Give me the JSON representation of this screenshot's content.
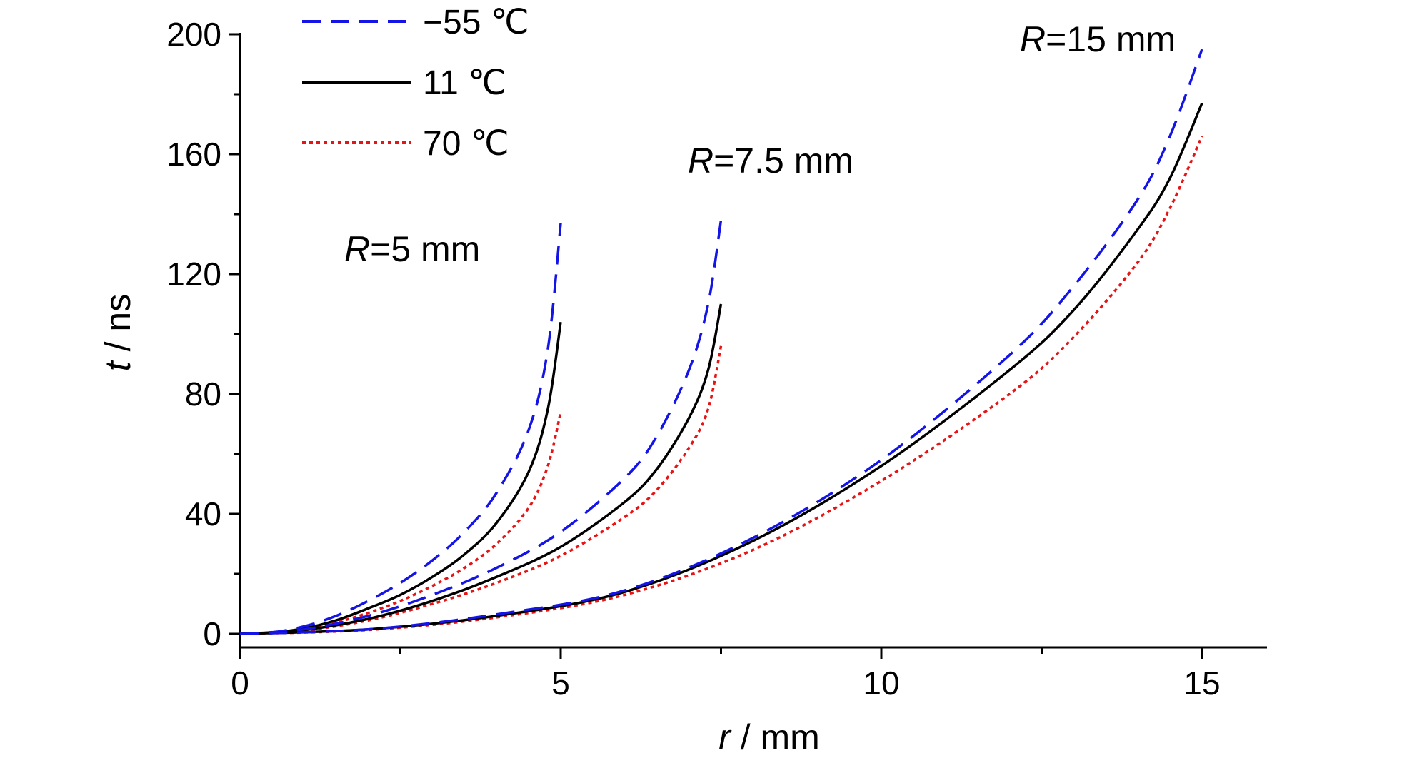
{
  "chart_data": {
    "type": "line",
    "xlabel": {
      "italic": "r",
      "rest": " / mm"
    },
    "ylabel": {
      "italic": "t",
      "rest": " / ns"
    },
    "xlim": [
      0,
      16
    ],
    "ylim": [
      -5,
      200
    ],
    "xticks": [
      0,
      5,
      10,
      15
    ],
    "yticks": [
      0,
      40,
      80,
      120,
      160,
      200
    ],
    "grid": false,
    "legend_placement": "top-left",
    "series_styles": [
      {
        "name": "−55 ℃",
        "color": "#1414e6",
        "dash": "dashed"
      },
      {
        "name": "11 ℃",
        "color": "#000000",
        "dash": "solid"
      },
      {
        "name": "70 ℃",
        "color": "#e61414",
        "dash": "dotted"
      }
    ],
    "groups": [
      {
        "label": {
          "italic": "R",
          "rest": "=5 mm"
        },
        "x": [
          0,
          0.5,
          1.0,
          1.5,
          2.0,
          2.5,
          3.0,
          3.5,
          4.0,
          4.5,
          4.8,
          5.0
        ],
        "series": [
          {
            "name": "−55 ℃",
            "values": [
              0,
              0.5,
              2.5,
              6,
              11,
              17,
              24.5,
              34,
              47,
              68,
              95,
              137
            ]
          },
          {
            "name": "11 ℃",
            "values": [
              0,
              0.4,
              1.8,
              4.5,
              8.5,
              13,
              19,
              26.5,
              37,
              54,
              75,
              104
            ]
          },
          {
            "name": "70 ℃",
            "values": [
              0,
              0.3,
              1.5,
              3.8,
              7,
              11,
              16,
              22,
              30,
              42,
              56,
              74
            ]
          }
        ]
      },
      {
        "label": {
          "italic": "R",
          "rest": "=7.5 mm"
        },
        "x": [
          0,
          1,
          2,
          3,
          4,
          5,
          6,
          6.5,
          7.0,
          7.3,
          7.5
        ],
        "series": [
          {
            "name": "−55 ℃",
            "values": [
              0,
              1.5,
              6,
              13,
              22,
              34,
              52,
              66,
              88,
              110,
              138
            ]
          },
          {
            "name": "11 ℃",
            "values": [
              0,
              1.3,
              5,
              11,
              19,
              29,
              44,
              55,
              72,
              88,
              110
            ]
          },
          {
            "name": "70 ℃",
            "values": [
              0,
              1.1,
              4.5,
              10,
              17,
              26,
              39,
              48,
              62,
              75,
              96
            ]
          }
        ]
      },
      {
        "label": {
          "italic": "R",
          "rest": "=15 mm"
        },
        "x": [
          0,
          2,
          4,
          6,
          8,
          10,
          12,
          13,
          14,
          14.5,
          15
        ],
        "series": [
          {
            "name": "−55 ℃",
            "values": [
              0,
              1.5,
              6.5,
              14.5,
              32,
              58,
              93,
              116,
              145,
              166,
              195
            ]
          },
          {
            "name": "11 ℃",
            "values": [
              0,
              1.5,
              6,
              14,
              31,
              56,
              88,
              108,
              135,
              152,
              177
            ]
          },
          {
            "name": "70 ℃",
            "values": [
              0,
              1.3,
              5.5,
              13,
              28,
              51,
              80,
              99,
              124,
              142,
              166
            ]
          }
        ]
      }
    ]
  }
}
